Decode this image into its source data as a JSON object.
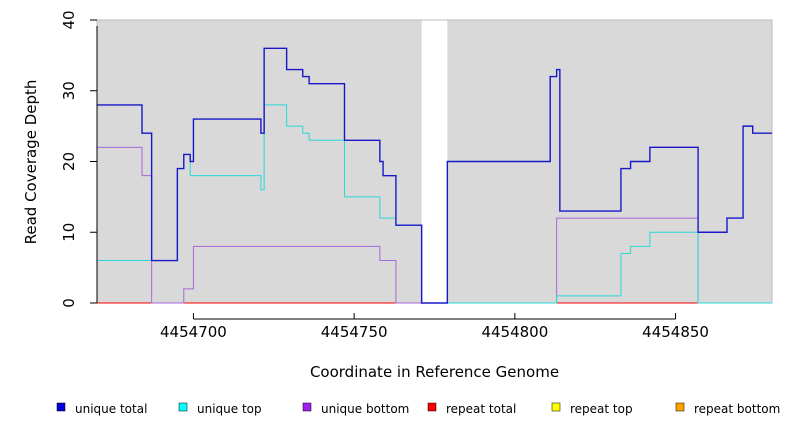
{
  "chart_data": {
    "type": "line",
    "xlabel": "Coordinate in Reference Genome",
    "ylabel": "Read Coverage Depth",
    "xlim": [
      4454670,
      4454880
    ],
    "ylim": [
      0,
      40
    ],
    "x_ticks": [
      4454700,
      4454750,
      4454800,
      4454850
    ],
    "y_ticks": [
      0,
      10,
      20,
      30,
      40
    ],
    "background": "#d9d9d9",
    "gap_region": [
      4454771,
      4454779
    ],
    "series": [
      {
        "name": "unique total",
        "color": "#0000e0",
        "line_color": "#1818c8",
        "x": [
          4454670,
          4454684,
          4454687,
          4454695,
          4454697,
          4454699,
          4454700,
          4454721,
          4454722,
          4454729,
          4454734,
          4454736,
          4454747,
          4454758,
          4454759,
          4454763,
          4454771,
          4454779,
          4454811,
          4454813,
          4454814,
          4454833,
          4454836,
          4454842,
          4454857,
          4454866,
          4454871,
          4454874,
          4454880
        ],
        "y": [
          28,
          24,
          6,
          19,
          21,
          20,
          26,
          24,
          36,
          33,
          32,
          31,
          23,
          20,
          18,
          11,
          0,
          20,
          32,
          33,
          13,
          19,
          20,
          22,
          10,
          12,
          25,
          24,
          24
        ]
      },
      {
        "name": "unique top",
        "color": "#00ffff",
        "line_color": "#2bd8d8",
        "x": [
          4454670,
          4454687,
          4454695,
          4454697,
          4454699,
          4454721,
          4454722,
          4454729,
          4454734,
          4454736,
          4454747,
          4454758,
          4454763,
          4454771,
          4454779,
          4454813,
          4454833,
          4454836,
          4454842,
          4454857,
          4454880
        ],
        "y": [
          6,
          6,
          19,
          21,
          18,
          16,
          28,
          25,
          24,
          23,
          15,
          12,
          11,
          0,
          0,
          1,
          7,
          8,
          10,
          0,
          0
        ]
      },
      {
        "name": "unique bottom",
        "color": "#a020f0",
        "line_color": "#a868d8",
        "x": [
          4454670,
          4454684,
          4454687,
          4454697,
          4454700,
          4454758,
          4454763,
          4454771,
          4454779,
          4454813,
          4454857,
          4454880
        ],
        "y": [
          22,
          18,
          0,
          2,
          8,
          6,
          0,
          0,
          0,
          12,
          0,
          0
        ]
      },
      {
        "name": "repeat total",
        "color": "#ff0000",
        "line_color": "#ff0000",
        "x": [
          4454670,
          4454880
        ],
        "y": [
          0,
          0
        ]
      },
      {
        "name": "repeat top",
        "color": "#ffff00",
        "line_color": "#ffff00",
        "x": [
          4454670,
          4454880
        ],
        "y": [
          0,
          0
        ]
      },
      {
        "name": "repeat bottom",
        "color": "#ffa500",
        "line_color": "#ffa500",
        "x": [
          4454670,
          4454880
        ],
        "y": [
          0,
          0
        ]
      }
    ]
  }
}
